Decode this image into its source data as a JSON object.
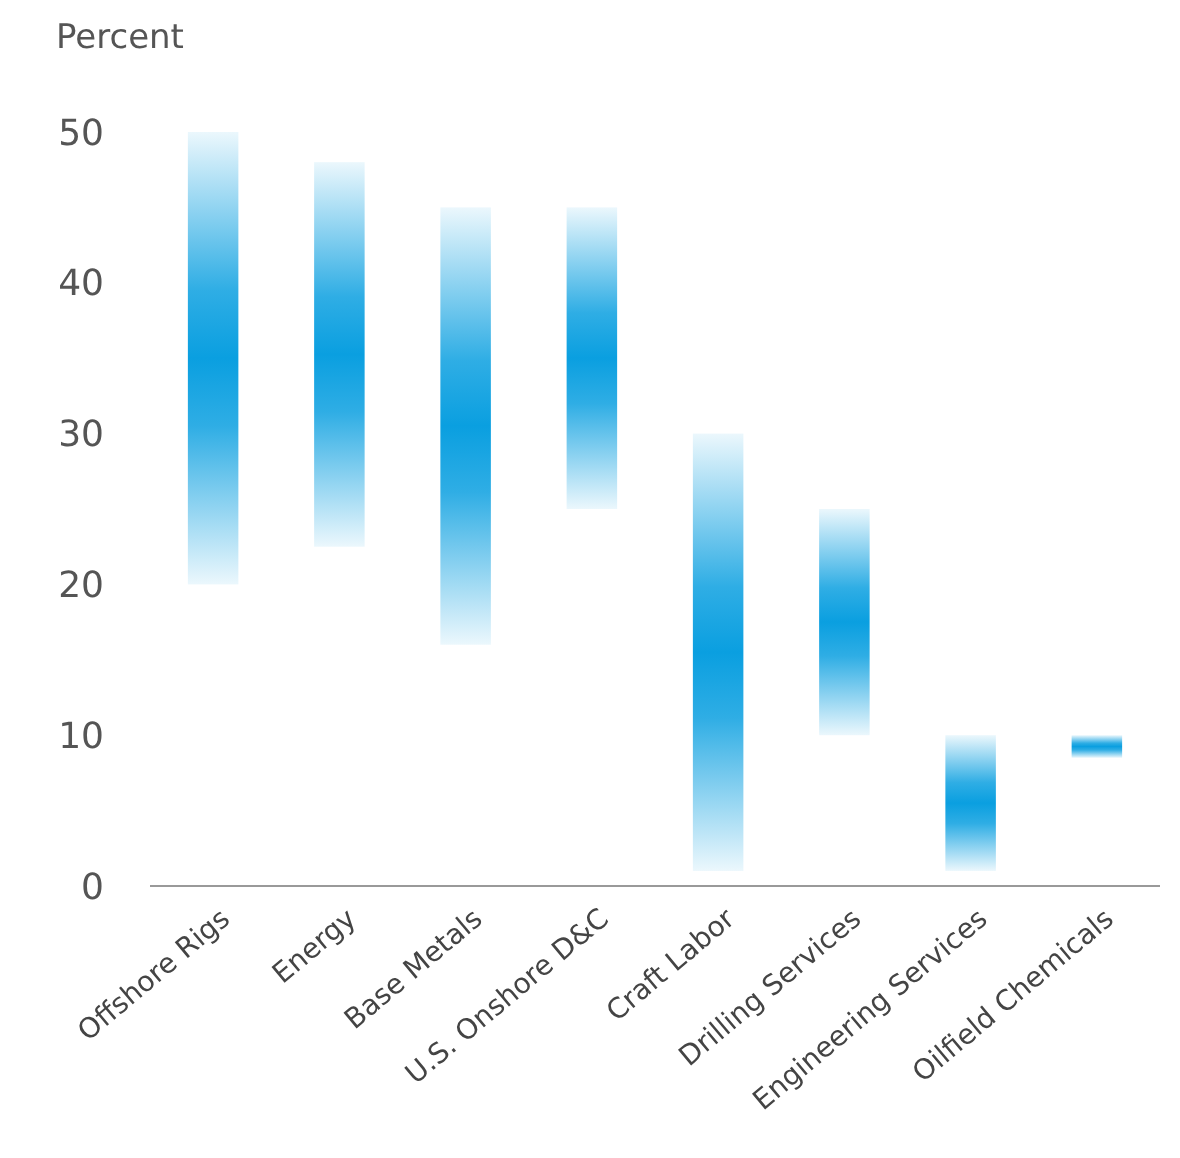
{
  "chart_data": {
    "type": "bar",
    "ylabel": "Percent",
    "categories": [
      "Offshore Rigs",
      "Energy",
      "Base Metals",
      "U.S. Onshore D&C",
      "Craft Labor",
      "Drilling Services",
      "Engineering Services",
      "Oilfield Chemicals"
    ],
    "base": [
      20,
      22.5,
      16,
      25,
      1,
      10,
      1,
      8.5
    ],
    "values": [
      30,
      25.5,
      29,
      20,
      29,
      15,
      9,
      1.5
    ],
    "color": "#0a9fe0",
    "ylim": [
      0,
      50
    ],
    "yticks": [
      0,
      10,
      20,
      30,
      40,
      50
    ],
    "grid": false
  }
}
